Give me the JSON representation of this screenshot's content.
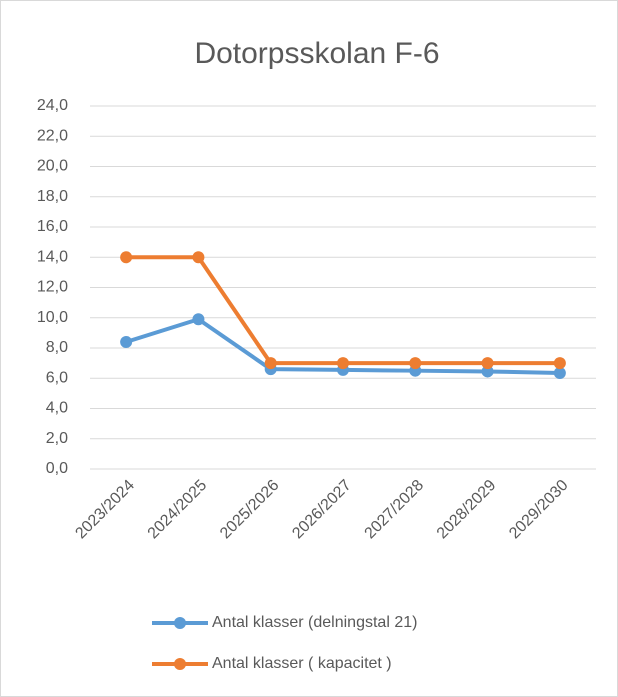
{
  "chart_data": {
    "type": "line",
    "title": "Dotorpsskolan F-6",
    "categories": [
      "2023/2024",
      "2024/2025",
      "2025/2026",
      "2026/2027",
      "2027/2028",
      "2028/2029",
      "2029/2030"
    ],
    "series": [
      {
        "name": "Antal klasser (delningstal 21)",
        "color": "#5b9bd5",
        "values": [
          8.4,
          9.9,
          6.6,
          6.55,
          6.5,
          6.45,
          6.35
        ]
      },
      {
        "name": "Antal klasser ( kapacitet )",
        "color": "#ed7d31",
        "values": [
          14,
          14,
          7,
          7,
          7,
          7,
          7
        ]
      }
    ],
    "ylim": [
      0,
      24
    ],
    "yticks": [
      {
        "value": 0,
        "label": "0,0"
      },
      {
        "value": 2,
        "label": "2,0"
      },
      {
        "value": 4,
        "label": "4,0"
      },
      {
        "value": 6,
        "label": "6,0"
      },
      {
        "value": 8,
        "label": "8,0"
      },
      {
        "value": 10,
        "label": "10,0"
      },
      {
        "value": 12,
        "label": "12,0"
      },
      {
        "value": 14,
        "label": "14,0"
      },
      {
        "value": 16,
        "label": "16,0"
      },
      {
        "value": 18,
        "label": "18,0"
      },
      {
        "value": 20,
        "label": "20,0"
      },
      {
        "value": 22,
        "label": "22,0"
      },
      {
        "value": 24,
        "label": "24,0"
      }
    ],
    "grid": true,
    "legend": "bottom"
  }
}
